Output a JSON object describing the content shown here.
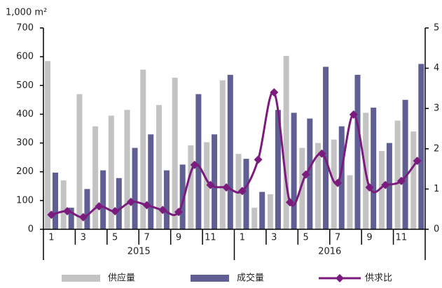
{
  "chart_data": {
    "type": "bar_line",
    "y_unit_label": "1,000 m²",
    "categories": [
      "1",
      null,
      "3",
      null,
      "5",
      null,
      "7",
      null,
      "9",
      null,
      "11",
      null,
      "1",
      null,
      "3",
      null,
      "5",
      null,
      "7",
      null,
      "9",
      null,
      "11",
      null
    ],
    "groups": [
      {
        "label": "2015",
        "span": 12
      },
      {
        "label": "2016",
        "span": 12
      }
    ],
    "series": [
      {
        "name": "供应量",
        "color": "#c3c3c3",
        "kind": "bar",
        "values": [
          585,
          170,
          470,
          358,
          395,
          415,
          555,
          432,
          527,
          292,
          303,
          518,
          262,
          75,
          122,
          603,
          283,
          300,
          312,
          188,
          405,
          272,
          378,
          340
        ]
      },
      {
        "name": "成交量",
        "color": "#5f5f93",
        "kind": "bar",
        "values": [
          197,
          75,
          140,
          205,
          178,
          283,
          330,
          205,
          225,
          470,
          330,
          537,
          245,
          130,
          415,
          405,
          385,
          565,
          358,
          537,
          423,
          300,
          450,
          575
        ]
      },
      {
        "name": "供求比",
        "color": "#7b1b7e",
        "kind": "line",
        "axis": "y2",
        "values": [
          0.36,
          0.45,
          0.3,
          0.57,
          0.45,
          0.68,
          0.6,
          0.48,
          0.43,
          1.6,
          1.1,
          1.04,
          0.95,
          1.73,
          3.4,
          0.67,
          1.36,
          1.88,
          1.15,
          2.85,
          1.04,
          1.1,
          1.2,
          1.7
        ]
      }
    ],
    "ylim": [
      0,
      700
    ],
    "yticks": [
      0,
      100,
      200,
      300,
      400,
      500,
      600,
      700
    ],
    "y2lim": [
      0,
      5
    ],
    "y2ticks": [
      0,
      1,
      2,
      3,
      4,
      5
    ]
  }
}
